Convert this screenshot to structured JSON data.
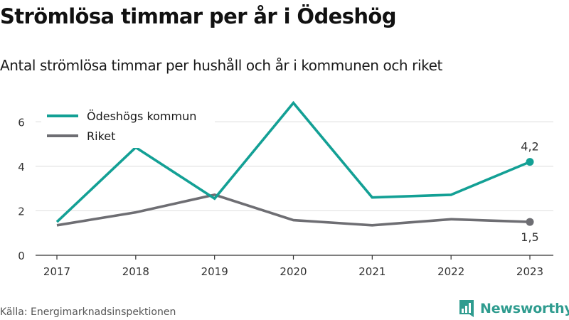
{
  "header": {
    "title": "Strömlösa timmar per år i Ödeshög",
    "subtitle": "Antal strömlösa timmar per hushåll och år i kommunen och riket"
  },
  "chart_data": {
    "type": "line",
    "title": "Strömlösa timmar per år i Ödeshög",
    "subtitle": "Antal strömlösa timmar per hushåll och år i kommunen och riket",
    "xlabel": "",
    "ylabel": "",
    "x": [
      "2017",
      "2018",
      "2019",
      "2020",
      "2021",
      "2022",
      "2023"
    ],
    "ylim": [
      0,
      7
    ],
    "yticks": [
      0,
      2,
      4,
      6
    ],
    "grid": true,
    "legend_position": "top-left",
    "series": [
      {
        "name": "Ödeshögs kommun",
        "color": "#13a095",
        "values": [
          1.5,
          4.85,
          2.55,
          6.85,
          2.6,
          2.72,
          4.2
        ],
        "end_label": "4,2"
      },
      {
        "name": "Riket",
        "color": "#6e6e73",
        "values": [
          1.35,
          1.93,
          2.72,
          1.58,
          1.35,
          1.62,
          1.5
        ],
        "end_label": "1,5"
      }
    ]
  },
  "footer": {
    "source": "Källa: Energimarknadsinspektionen",
    "brand": "Newsworthy",
    "brand_color": "#2f9c8f",
    "brand_icon": "newsworthy-logo-icon"
  }
}
